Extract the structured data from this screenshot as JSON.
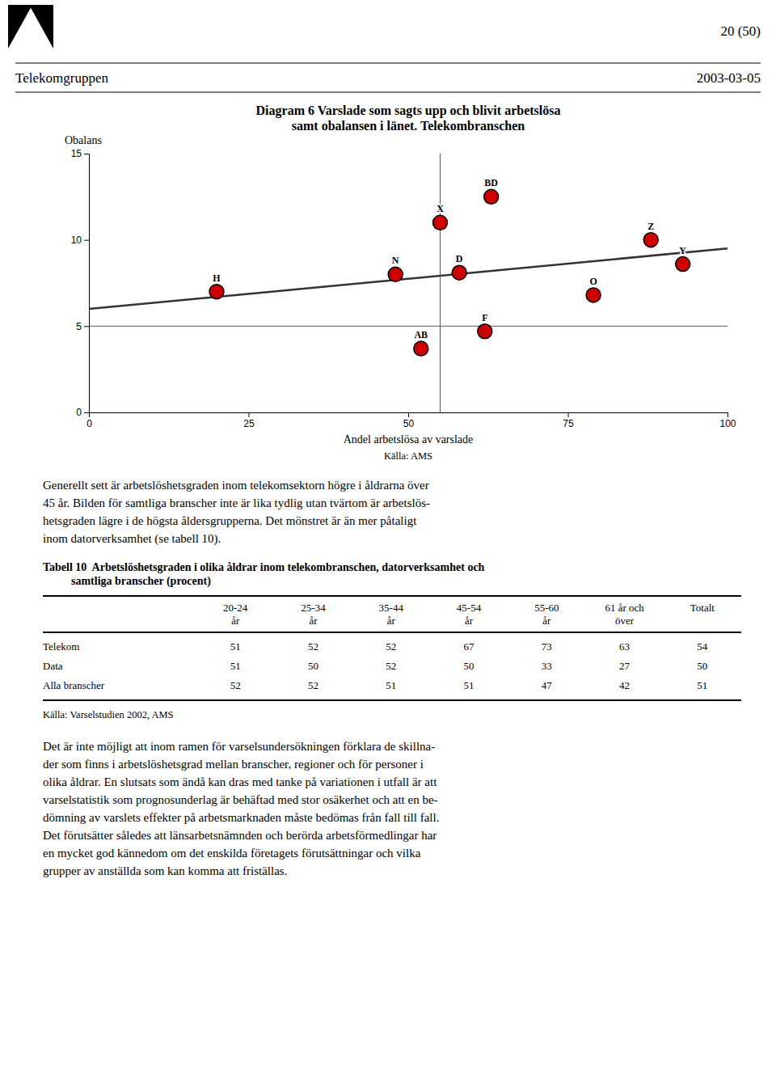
{
  "header": {
    "page_num": "20 (50)",
    "left": "Telekomgruppen",
    "right": "2003-03-05"
  },
  "chart_data": {
    "type": "scatter",
    "title": "Diagram 6  Varslade som sagts upp och blivit arbetslösa\nsamt obalansen i länet. Telekombranschen",
    "y_label": "Obalans",
    "x_label": "Andel arbetslösa av varslade",
    "source": "Källa: AMS",
    "x": [
      20,
      48,
      52,
      58,
      55,
      63,
      62,
      79,
      88,
      93
    ],
    "values": [
      7.0,
      8.0,
      3.7,
      8.1,
      11.0,
      12.5,
      4.7,
      6.8,
      10.0,
      8.6
    ],
    "labels": [
      "H",
      "N",
      "AB",
      "D",
      "X",
      "BD",
      "F",
      "O",
      "Z",
      "Y"
    ],
    "color": "#cc0000",
    "trend_line": {
      "x": [
        0,
        100
      ],
      "values": [
        6.0,
        9.5
      ]
    },
    "reference_lines": {
      "x": 55,
      "y": 5
    },
    "xlim": [
      0,
      100
    ],
    "ylim": [
      0,
      15
    ],
    "xticks": [
      0,
      25,
      50,
      75,
      100
    ],
    "yticks": [
      0,
      5,
      10,
      15
    ]
  },
  "paragraphs": [
    "Generellt sett är arbetslöshetsgraden inom telekomsektorn högre i åldrarna över\n45 år. Bilden för samtliga branscher inte är lika tydlig utan tvärtom är arbetslös-\nhetsgraden lägre i de högsta åldersgrupperna. Det mönstret är än mer påtaligt\ninom datorverksamhet (se tabell 10).",
    "Det är inte möjligt att inom ramen för varselsundersökningen förklara de skillna-\nder som finns i arbetslöshetsgrad mellan branscher, regioner och för personer i\nolika åldrar. En slutsats som ändå kan dras med tanke på variationen i utfall är att\nvarselstatistik som prognosunderlag är behäftad med stor osäkerhet och att en be-\ndömning av varslets effekter på arbetsmarknaden måste bedömas från fall till fall.\nDet förutsätter således att länsarbetsnämnden och berörda arbetsförmedlingar har\nen mycket god kännedom om det enskilda företagets förutsättningar och vilka\ngrupper av anställda som kan komma att friställas."
  ],
  "table": {
    "title": [
      "Tabell 10  Arbetslöshetsgraden i olika åldrar inom telekombranschen, datorverksamhet och",
      "          samtliga branscher (procent)"
    ],
    "columns": [
      "20-24\når",
      "25-34\når",
      "35-44\når",
      "45-54\når",
      "55-60\når",
      "61 år och\növer",
      "Totalt"
    ],
    "rows": [
      [
        "Telekom",
        51,
        52,
        52,
        67,
        73,
        63,
        54
      ],
      [
        "Data",
        51,
        50,
        52,
        50,
        33,
        27,
        50
      ],
      [
        "Alla branscher",
        52,
        52,
        51,
        51,
        47,
        42,
        51
      ]
    ],
    "source": "Källa: Varselstudien 2002, AMS"
  }
}
